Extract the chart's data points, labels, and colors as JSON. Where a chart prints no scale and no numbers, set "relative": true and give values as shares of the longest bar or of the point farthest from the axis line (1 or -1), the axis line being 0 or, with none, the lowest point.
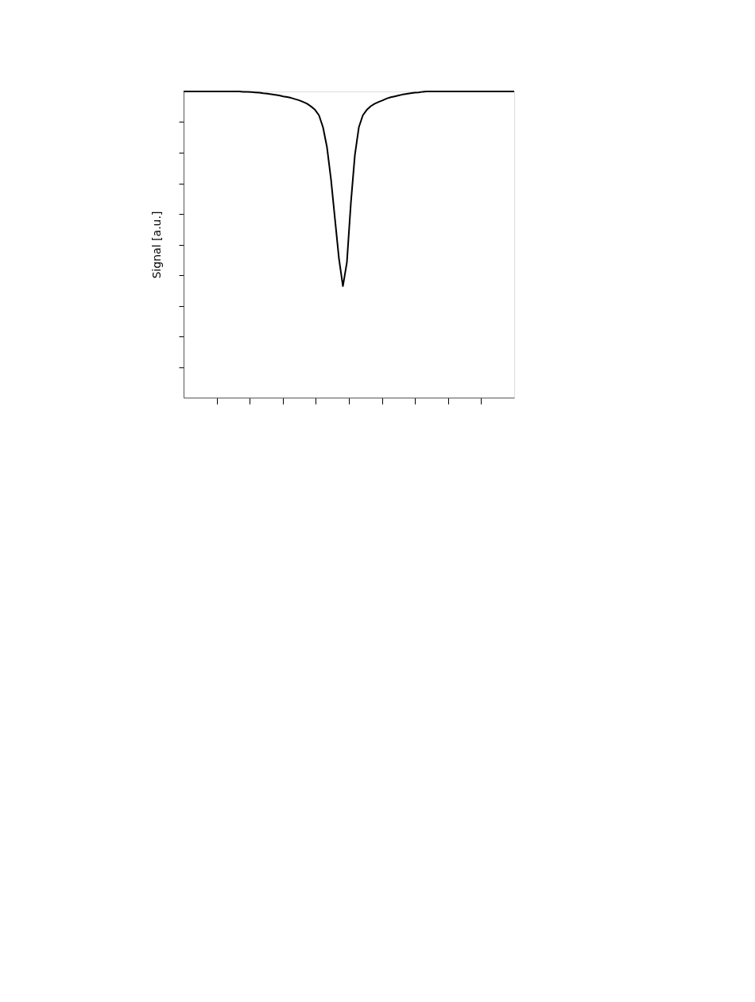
{
  "chart_data": {
    "type": "line",
    "ylabel": "Signal [a.u.]",
    "relative": true,
    "legend": false,
    "grid": false,
    "tick_labels": false,
    "line_style": "solid",
    "marker": "none",
    "categories": [
      null,
      null,
      null,
      null,
      null,
      null,
      null,
      null,
      null,
      null,
      null,
      null,
      null,
      null,
      null,
      null,
      null,
      null,
      null,
      null,
      null,
      null,
      null,
      null,
      null,
      null,
      null,
      null,
      null,
      null,
      null,
      null,
      null,
      null,
      null,
      null,
      null,
      null,
      null,
      null,
      null,
      null,
      null,
      null,
      null,
      null,
      null,
      null,
      null,
      null,
      null,
      null,
      null,
      null,
      null,
      null,
      null,
      null,
      null,
      null,
      null,
      null,
      null,
      null,
      null,
      null,
      null,
      null,
      null,
      null,
      null,
      null,
      null,
      null,
      null,
      null,
      null,
      null,
      null,
      null,
      null,
      null,
      null,
      null
    ],
    "series": [
      {
        "color": "#000000",
        "values": [
          1.0,
          1.0,
          1.0,
          1.0,
          1.0,
          1.0,
          1.0,
          1.0,
          1.0,
          1.0,
          1.0,
          1.0,
          1.0,
          1.0,
          1.0,
          0.999,
          0.999,
          0.998,
          0.997,
          0.996,
          0.994,
          0.993,
          0.991,
          0.989,
          0.987,
          0.984,
          0.982,
          0.979,
          0.975,
          0.971,
          0.966,
          0.96,
          0.951,
          0.94,
          0.922,
          0.883,
          0.818,
          0.714,
          0.584,
          0.455,
          0.364,
          0.442,
          0.636,
          0.792,
          0.883,
          0.922,
          0.94,
          0.952,
          0.96,
          0.966,
          0.971,
          0.977,
          0.981,
          0.984,
          0.987,
          0.99,
          0.992,
          0.994,
          0.996,
          0.997,
          0.999,
          1.0,
          1.0,
          1.0,
          1.0,
          1.0,
          1.0,
          1.0,
          1.0,
          1.0,
          1.0,
          1.0,
          1.0,
          1.0,
          1.0,
          1.0,
          1.0,
          1.0,
          1.0,
          1.0,
          1.0,
          1.0,
          1.0,
          1.0
        ]
      }
    ]
  }
}
